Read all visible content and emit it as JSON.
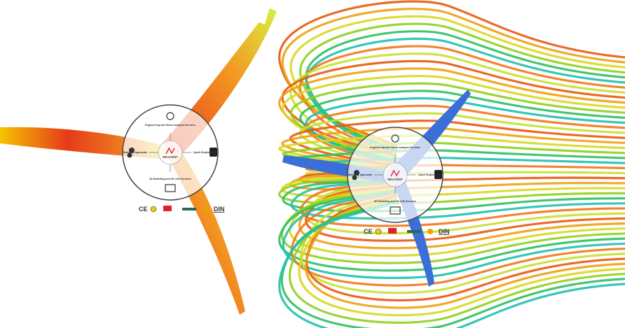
{
  "diagram": {
    "services": {
      "top": "Engineering and Stress Analysis Services",
      "left": "Statutory Approvals",
      "right": "Quick Engineering",
      "bottom": "3D Modelling and 2D CAD Services"
    },
    "logo": "NEOCENT",
    "certifications": [
      "CE",
      "DIN"
    ]
  }
}
